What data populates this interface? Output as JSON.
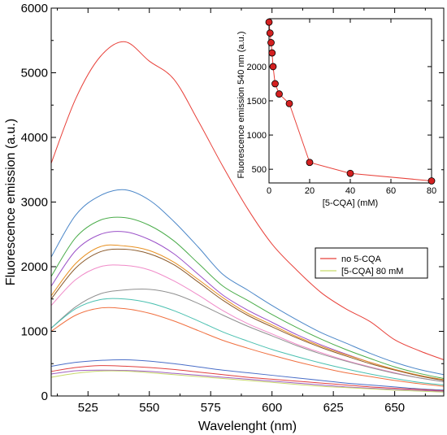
{
  "chart_data": [
    {
      "type": "line",
      "title": "",
      "xlabel": "Wavelenght (nm)",
      "ylabel": "Fluorescence emission (a.u.)",
      "xlim": [
        510,
        670
      ],
      "ylim": [
        0,
        6000
      ],
      "xticks": [
        525,
        550,
        575,
        600,
        625,
        650
      ],
      "yticks": [
        0,
        1000,
        2000,
        3000,
        4000,
        5000,
        6000
      ],
      "legend": {
        "placement": "right",
        "entries": [
          {
            "label": "no 5-CQA",
            "color": "#e8413a"
          },
          {
            "label": "[5-CQA] 80 mM",
            "color": "#c8d96b"
          }
        ]
      },
      "x": [
        510,
        520,
        530,
        540,
        550,
        560,
        570,
        580,
        590,
        600,
        610,
        620,
        630,
        640,
        650,
        660,
        670
      ],
      "series": [
        {
          "name": "no 5-CQA",
          "color": "#e8413a",
          "values": [
            3600,
            4600,
            5250,
            5480,
            5180,
            4900,
            4250,
            3550,
            2900,
            2350,
            1950,
            1600,
            1350,
            1150,
            870,
            700,
            560
          ]
        },
        {
          "color": "#4a86c8",
          "values": [
            2150,
            2800,
            3100,
            3190,
            3030,
            2700,
            2300,
            1880,
            1640,
            1400,
            1180,
            980,
            820,
            660,
            520,
            410,
            330
          ]
        },
        {
          "color": "#4aac4a",
          "values": [
            1850,
            2450,
            2720,
            2760,
            2640,
            2400,
            2050,
            1700,
            1480,
            1260,
            1060,
            880,
            720,
            580,
            450,
            350,
            270
          ]
        },
        {
          "color": "#9a50c8",
          "values": [
            1700,
            2250,
            2500,
            2540,
            2420,
            2200,
            1880,
            1560,
            1330,
            1140,
            950,
            790,
            650,
            520,
            410,
            320,
            250
          ]
        },
        {
          "color": "#e89020",
          "values": [
            1550,
            2050,
            2310,
            2320,
            2250,
            2070,
            1800,
            1520,
            1280,
            1100,
            920,
            770,
            640,
            520,
            410,
            320,
            250
          ]
        },
        {
          "color": "#8b5a2b",
          "values": [
            1500,
            1980,
            2230,
            2270,
            2200,
            2030,
            1760,
            1480,
            1250,
            1070,
            900,
            750,
            620,
            500,
            400,
            310,
            240
          ]
        },
        {
          "color": "#f08ac8",
          "values": [
            1400,
            1800,
            2000,
            2020,
            1950,
            1780,
            1560,
            1320,
            1120,
            960,
            800,
            670,
            550,
            450,
            360,
            280,
            220
          ]
        },
        {
          "color": "#909090",
          "values": [
            1050,
            1380,
            1580,
            1640,
            1650,
            1580,
            1430,
            1250,
            1080,
            930,
            780,
            650,
            540,
            440,
            350,
            280,
            220
          ]
        },
        {
          "color": "#4ac0b0",
          "values": [
            1050,
            1350,
            1490,
            1500,
            1440,
            1320,
            1160,
            990,
            850,
            720,
            610,
            510,
            420,
            340,
            270,
            210,
            170
          ]
        },
        {
          "color": "#f07040",
          "values": [
            1000,
            1250,
            1360,
            1350,
            1280,
            1160,
            1010,
            860,
            740,
            630,
            530,
            440,
            360,
            300,
            240,
            190,
            150
          ]
        },
        {
          "color": "#4a6ec8",
          "values": [
            460,
            520,
            550,
            560,
            540,
            500,
            450,
            400,
            360,
            320,
            280,
            240,
            200,
            170,
            140,
            110,
            90
          ]
        },
        {
          "color": "#e04040",
          "values": [
            380,
            440,
            470,
            460,
            440,
            410,
            370,
            330,
            290,
            260,
            230,
            200,
            170,
            140,
            120,
            100,
            80
          ]
        },
        {
          "color": "#a060c0",
          "values": [
            340,
            390,
            400,
            395,
            380,
            350,
            320,
            290,
            260,
            230,
            200,
            170,
            140,
            120,
            100,
            85,
            70
          ]
        },
        {
          "color": "#c8d96b",
          "values": [
            290,
            350,
            385,
            385,
            360,
            330,
            300,
            270,
            240,
            210,
            180,
            150,
            130,
            110,
            90,
            75,
            60
          ]
        }
      ]
    },
    {
      "type": "scatter",
      "title": "",
      "xlabel": "[5-CQA] (mM)",
      "ylabel": "Fluorescence emission 540 nm (a.u.)",
      "xlim": [
        0,
        80
      ],
      "ylim": [
        300,
        2700
      ],
      "xticks": [
        0,
        20,
        40,
        60,
        80
      ],
      "yticks": [
        500,
        1000,
        1500,
        2000
      ],
      "x": [
        0,
        0.5,
        1,
        1.5,
        2,
        3,
        5,
        10,
        20,
        40,
        80
      ],
      "values": [
        2650,
        2490,
        2350,
        2200,
        2000,
        1750,
        1600,
        1460,
        600,
        440,
        330
      ],
      "color": "#e8413a"
    }
  ]
}
